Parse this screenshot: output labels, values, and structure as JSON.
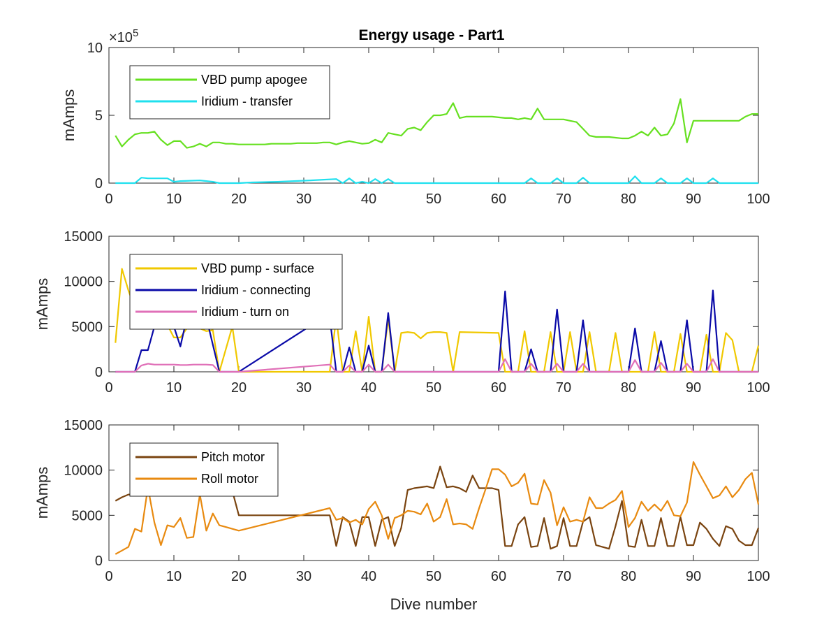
{
  "figure": {
    "title": "Energy usage - Part1"
  },
  "chart_data": [
    {
      "type": "line",
      "title": "Energy usage - Part1",
      "xlabel": "",
      "ylabel": "mAmps",
      "xlim": [
        0,
        100
      ],
      "ylim": [
        0,
        10
      ],
      "y_exponent_label": "×10",
      "y_exponent_power": "5",
      "xticks": [
        "0",
        "10",
        "20",
        "30",
        "40",
        "50",
        "60",
        "70",
        "80",
        "90",
        "100"
      ],
      "yticks": [
        "0",
        "5",
        "10"
      ],
      "ytick_values": [
        0,
        5,
        10
      ],
      "legend_placement": "top-left",
      "grid": false,
      "series": [
        {
          "name": "VBD pump apogee",
          "color": "#66e020",
          "x": [
            1,
            2,
            3,
            4,
            5,
            6,
            7,
            8,
            9,
            10,
            11,
            12,
            13,
            14,
            15,
            16,
            17,
            18,
            19,
            20,
            21,
            22,
            23,
            24,
            25,
            26,
            27,
            28,
            29,
            30,
            31,
            32,
            33,
            34,
            35,
            36,
            37,
            38,
            39,
            40,
            41,
            42,
            43,
            44,
            45,
            46,
            47,
            48,
            49,
            50,
            51,
            52,
            53,
            54,
            55,
            56,
            57,
            58,
            59,
            60,
            61,
            62,
            63,
            64,
            65,
            66,
            67,
            68,
            69,
            70,
            71,
            72,
            73,
            74,
            75,
            76,
            77,
            78,
            79,
            80,
            81,
            82,
            83,
            84,
            85,
            86,
            87,
            88,
            89,
            90,
            91,
            92,
            93,
            94,
            95,
            96,
            97,
            98,
            99,
            100
          ],
          "values": [
            3.5,
            2.7,
            3.2,
            3.6,
            3.7,
            3.7,
            3.8,
            3.2,
            2.8,
            3.1,
            3.1,
            2.6,
            2.7,
            2.9,
            2.7,
            3.0,
            3.0,
            2.9,
            2.9,
            2.85,
            2.85,
            2.85,
            2.85,
            2.85,
            2.9,
            2.9,
            2.9,
            2.9,
            2.95,
            2.95,
            2.95,
            2.95,
            3.0,
            3.0,
            2.85,
            3.0,
            3.1,
            3.0,
            2.9,
            2.95,
            3.2,
            3.0,
            3.7,
            3.6,
            3.5,
            4.0,
            4.1,
            3.9,
            4.5,
            5.0,
            5.0,
            5.1,
            5.9,
            4.8,
            4.9,
            4.9,
            4.9,
            4.9,
            4.9,
            4.85,
            4.8,
            4.8,
            4.7,
            4.8,
            4.7,
            5.5,
            4.7,
            4.7,
            4.7,
            4.7,
            4.6,
            4.5,
            4.0,
            3.5,
            3.4,
            3.4,
            3.4,
            3.35,
            3.3,
            3.3,
            3.5,
            3.8,
            3.5,
            4.1,
            3.5,
            3.6,
            4.4,
            6.2,
            3.0,
            4.6,
            4.6,
            4.6,
            4.6,
            4.6,
            4.6,
            4.6,
            4.6,
            4.9,
            5.1,
            5.1
          ]
        },
        {
          "name": "Iridium - transfer",
          "color": "#1fe0ee",
          "x": [
            1,
            4,
            5,
            6,
            9,
            10,
            11,
            14,
            16,
            17,
            20,
            22,
            26,
            31,
            35,
            36,
            37,
            38,
            39,
            40,
            41,
            42,
            43,
            44,
            60,
            64,
            65,
            66,
            68,
            69,
            70,
            72,
            73,
            74,
            80,
            81,
            82,
            84,
            85,
            86,
            88,
            89,
            90,
            92,
            93,
            94,
            100
          ],
          "values": [
            0,
            0,
            0.4,
            0.35,
            0.35,
            0.1,
            0.15,
            0.2,
            0.1,
            0,
            0,
            0.05,
            0.1,
            0.2,
            0.3,
            0,
            0.35,
            0,
            0.1,
            0,
            0.3,
            0,
            0.3,
            0,
            0,
            0,
            0.35,
            0,
            0,
            0.35,
            0,
            0,
            0.4,
            0,
            0,
            0.5,
            0,
            0,
            0.35,
            0,
            0,
            0.35,
            0,
            0,
            0.35,
            0,
            0
          ]
        }
      ]
    },
    {
      "type": "line",
      "title": "",
      "xlabel": "",
      "ylabel": "mAmps",
      "xlim": [
        0,
        100
      ],
      "ylim": [
        0,
        15000
      ],
      "xticks": [
        "0",
        "10",
        "20",
        "30",
        "40",
        "50",
        "60",
        "70",
        "80",
        "90",
        "100"
      ],
      "yticks": [
        "0",
        "5000",
        "10000",
        "15000"
      ],
      "ytick_values": [
        0,
        5000,
        10000,
        15000
      ],
      "legend_placement": "top-left",
      "grid": false,
      "series": [
        {
          "name": "VBD pump - surface",
          "color": "#f0c800",
          "x": [
            1,
            2,
            3,
            4,
            5,
            6,
            7,
            8,
            9,
            10,
            11,
            12,
            13,
            14,
            15,
            16,
            17,
            19,
            20,
            21,
            34,
            35,
            36,
            37,
            38,
            39,
            40,
            41,
            42,
            43,
            44,
            45,
            46,
            47,
            48,
            49,
            50,
            51,
            52,
            53,
            54,
            60,
            61,
            62,
            63,
            64,
            65,
            66,
            67,
            68,
            69,
            70,
            71,
            72,
            73,
            74,
            75,
            76,
            77,
            78,
            79,
            80,
            81,
            82,
            83,
            84,
            85,
            86,
            87,
            88,
            89,
            90,
            91,
            92,
            93,
            94,
            95,
            96,
            97,
            98,
            99,
            100
          ],
          "values": [
            3200,
            11400,
            9000,
            7000,
            5200,
            5000,
            5200,
            5500,
            5200,
            3800,
            3800,
            4800,
            5000,
            4800,
            4500,
            4600,
            0,
            5000,
            0,
            0,
            0,
            6000,
            0,
            0,
            4500,
            0,
            6100,
            0,
            0,
            5900,
            0,
            4300,
            4400,
            4300,
            3700,
            4300,
            4400,
            4400,
            4300,
            0,
            4400,
            4300,
            0,
            0,
            0,
            4500,
            0,
            0,
            0,
            4400,
            0,
            0,
            4400,
            0,
            0,
            4400,
            0,
            0,
            0,
            4300,
            0,
            0,
            0,
            0,
            0,
            4400,
            0,
            0,
            0,
            4200,
            0,
            0,
            0,
            4100,
            0,
            0,
            4300,
            3500,
            0,
            0,
            0,
            2900
          ]
        },
        {
          "name": "Iridium - connecting",
          "color": "#0a0aa8",
          "x": [
            1,
            2,
            3,
            4,
            5,
            6,
            7,
            8,
            9,
            10,
            11,
            12,
            13,
            14,
            15,
            16,
            17,
            20,
            33,
            34,
            35,
            36,
            37,
            38,
            39,
            40,
            41,
            42,
            43,
            44,
            60,
            61,
            62,
            64,
            65,
            66,
            68,
            69,
            70,
            72,
            73,
            74,
            80,
            81,
            82,
            84,
            85,
            86,
            88,
            89,
            90,
            92,
            93,
            94,
            100
          ],
          "values": [
            0,
            0,
            0,
            0,
            2400,
            2400,
            5000,
            6000,
            6000,
            5000,
            2800,
            6000,
            6000,
            6000,
            6000,
            3000,
            0,
            0,
            6000,
            6000,
            0,
            0,
            2700,
            0,
            0,
            2900,
            0,
            0,
            6500,
            0,
            0,
            8900,
            0,
            0,
            2500,
            0,
            0,
            6900,
            0,
            0,
            5700,
            0,
            0,
            4800,
            0,
            0,
            3400,
            0,
            0,
            5700,
            0,
            0,
            9000,
            0,
            0
          ]
        },
        {
          "name": "Iridium - turn on",
          "color": "#e070b8",
          "x": [
            1,
            4,
            5,
            6,
            7,
            8,
            9,
            10,
            11,
            12,
            13,
            14,
            15,
            16,
            17,
            20,
            34,
            35,
            36,
            37,
            38,
            39,
            40,
            41,
            42,
            43,
            44,
            60,
            61,
            62,
            64,
            65,
            66,
            68,
            69,
            70,
            72,
            73,
            74,
            80,
            81,
            82,
            84,
            85,
            86,
            88,
            89,
            90,
            92,
            93,
            94,
            100
          ],
          "values": [
            0,
            0,
            700,
            900,
            800,
            800,
            800,
            800,
            750,
            750,
            800,
            800,
            800,
            750,
            0,
            0,
            800,
            0,
            0,
            700,
            0,
            0,
            800,
            0,
            0,
            800,
            0,
            0,
            1400,
            0,
            0,
            900,
            0,
            0,
            900,
            0,
            0,
            900,
            0,
            0,
            1300,
            0,
            0,
            1000,
            0,
            0,
            900,
            0,
            0,
            1400,
            0,
            0
          ]
        }
      ]
    },
    {
      "type": "line",
      "title": "",
      "xlabel": "Dive number",
      "ylabel": "mAmps",
      "xlim": [
        0,
        100
      ],
      "ylim": [
        0,
        15000
      ],
      "xticks": [
        "0",
        "10",
        "20",
        "30",
        "40",
        "50",
        "60",
        "70",
        "80",
        "90",
        "100"
      ],
      "yticks": [
        "0",
        "5000",
        "10000",
        "15000"
      ],
      "ytick_values": [
        0,
        5000,
        10000,
        15000
      ],
      "legend_placement": "top-left",
      "grid": false,
      "series": [
        {
          "name": "Pitch motor",
          "color": "#7a4410",
          "x": [
            1,
            2,
            3,
            4,
            5,
            6,
            7,
            8,
            9,
            10,
            11,
            12,
            13,
            14,
            15,
            16,
            17,
            18,
            19,
            20,
            21,
            34,
            35,
            36,
            37,
            38,
            39,
            40,
            41,
            42,
            43,
            44,
            45,
            46,
            47,
            48,
            49,
            50,
            51,
            52,
            53,
            54,
            55,
            56,
            57,
            58,
            59,
            60,
            61,
            62,
            63,
            64,
            65,
            66,
            67,
            68,
            69,
            70,
            71,
            72,
            73,
            74,
            75,
            76,
            77,
            78,
            79,
            80,
            81,
            82,
            83,
            84,
            85,
            86,
            87,
            88,
            89,
            90,
            91,
            92,
            93,
            94,
            95,
            96,
            97,
            98,
            99,
            100
          ],
          "values": [
            6600,
            7000,
            7300,
            7300,
            7500,
            7600,
            7600,
            7400,
            7600,
            7700,
            7800,
            7900,
            7800,
            7600,
            7600,
            7700,
            7700,
            7700,
            7700,
            5000,
            5000,
            5000,
            1600,
            4800,
            4300,
            1600,
            4800,
            4800,
            1600,
            4500,
            4800,
            1600,
            3600,
            7800,
            8000,
            8100,
            8200,
            8000,
            10400,
            8100,
            8200,
            8000,
            7600,
            9400,
            8000,
            8000,
            8000,
            7800,
            1600,
            1600,
            4000,
            4800,
            1500,
            1600,
            4700,
            1300,
            1600,
            4700,
            1600,
            1600,
            4300,
            4800,
            1700,
            1500,
            1300,
            3800,
            6600,
            1600,
            1500,
            4500,
            1600,
            1600,
            4700,
            1600,
            1600,
            4800,
            1700,
            1700,
            4200,
            3500,
            2400,
            1600,
            3800,
            3500,
            2200,
            1700,
            1700,
            3600
          ]
        },
        {
          "name": "Roll motor",
          "color": "#e88a10",
          "x": [
            1,
            2,
            3,
            4,
            5,
            6,
            7,
            8,
            9,
            10,
            11,
            12,
            13,
            14,
            15,
            16,
            17,
            18,
            19,
            20,
            34,
            35,
            36,
            37,
            38,
            39,
            40,
            41,
            42,
            43,
            44,
            45,
            46,
            47,
            48,
            49,
            50,
            51,
            52,
            53,
            54,
            55,
            56,
            57,
            58,
            59,
            60,
            61,
            62,
            63,
            64,
            65,
            66,
            67,
            68,
            69,
            70,
            71,
            72,
            73,
            74,
            75,
            76,
            77,
            78,
            79,
            80,
            81,
            82,
            83,
            84,
            85,
            86,
            87,
            88,
            89,
            90,
            91,
            92,
            93,
            94,
            95,
            96,
            97,
            98,
            99,
            100
          ],
          "values": [
            700,
            1100,
            1500,
            3500,
            3200,
            8100,
            4200,
            1700,
            3900,
            3700,
            4700,
            2500,
            2600,
            7300,
            3300,
            5200,
            3900,
            3700,
            3500,
            3300,
            5800,
            4500,
            4700,
            4200,
            4500,
            4000,
            5700,
            6500,
            5000,
            2400,
            4700,
            5000,
            5500,
            5400,
            5100,
            6300,
            4300,
            4800,
            6800,
            4000,
            4100,
            4000,
            3500,
            5800,
            7900,
            10100,
            10100,
            9500,
            8200,
            8600,
            9600,
            6300,
            6200,
            8900,
            7500,
            3900,
            5900,
            4300,
            4500,
            4300,
            7000,
            5800,
            5800,
            6300,
            6700,
            7700,
            3700,
            4700,
            6500,
            5500,
            6200,
            5500,
            6600,
            5000,
            4900,
            6400,
            10900,
            9500,
            8200,
            6900,
            7200,
            8200,
            7000,
            7800,
            9000,
            9700,
            6200
          ]
        }
      ]
    }
  ]
}
